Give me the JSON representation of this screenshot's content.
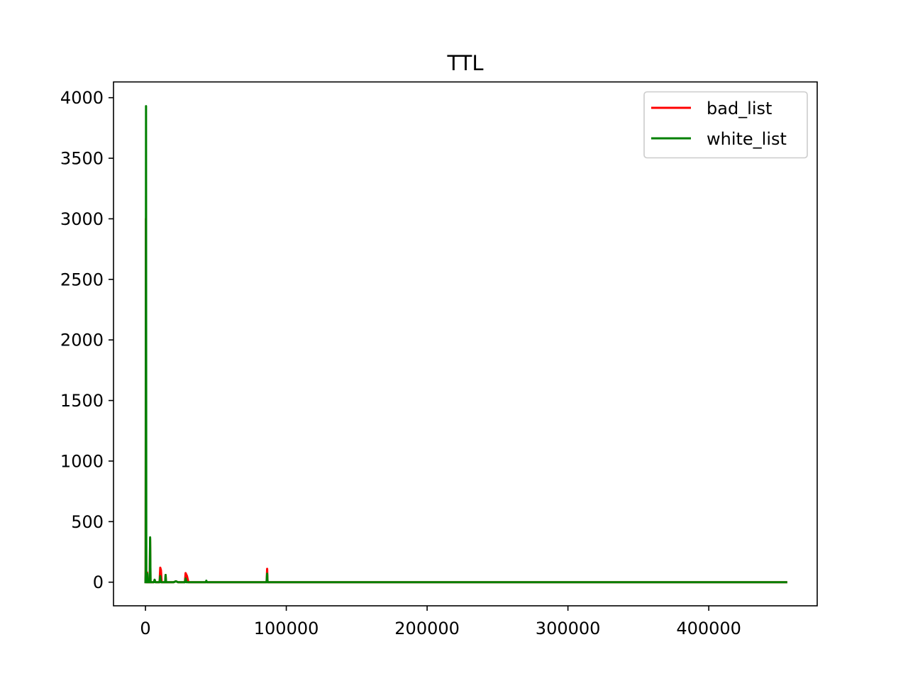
{
  "chart_data": {
    "type": "line",
    "title": "TTL",
    "xlabel": "",
    "ylabel": "",
    "xlim": [
      -22700,
      477000
    ],
    "ylim": [
      -195,
      4130
    ],
    "x_ticks": [
      0,
      100000,
      200000,
      300000,
      400000
    ],
    "x_tick_labels": [
      "0",
      "100000",
      "200000",
      "300000",
      "400000"
    ],
    "y_ticks": [
      0,
      500,
      1000,
      1500,
      2000,
      2500,
      3000,
      3500,
      4000
    ],
    "y_tick_labels": [
      "0",
      "500",
      "1000",
      "1500",
      "2000",
      "2500",
      "3000",
      "3500",
      "4000"
    ],
    "grid": false,
    "legend_position": "top-right",
    "series": [
      {
        "name": "bad_list",
        "color": "#ff0000",
        "points": [
          [
            0,
            0
          ],
          [
            100,
            60
          ],
          [
            300,
            3000
          ],
          [
            500,
            0
          ],
          [
            1000,
            0
          ],
          [
            1200,
            80
          ],
          [
            1500,
            0
          ],
          [
            3000,
            0
          ],
          [
            3300,
            360
          ],
          [
            3600,
            0
          ],
          [
            6000,
            0
          ],
          [
            6500,
            20
          ],
          [
            7000,
            0
          ],
          [
            10000,
            0
          ],
          [
            10500,
            120
          ],
          [
            11000,
            100
          ],
          [
            11500,
            0
          ],
          [
            14000,
            0
          ],
          [
            14300,
            60
          ],
          [
            14600,
            0
          ],
          [
            20000,
            0
          ],
          [
            21600,
            8
          ],
          [
            23000,
            0
          ],
          [
            28000,
            0
          ],
          [
            28500,
            75
          ],
          [
            29500,
            50
          ],
          [
            30500,
            0
          ],
          [
            43000,
            0
          ],
          [
            43200,
            10
          ],
          [
            43600,
            0
          ],
          [
            86000,
            0
          ],
          [
            86400,
            110
          ],
          [
            86700,
            0
          ],
          [
            455000,
            0
          ]
        ]
      },
      {
        "name": "white_list",
        "color": "#008000",
        "points": [
          [
            0,
            0
          ],
          [
            150,
            90
          ],
          [
            400,
            3930
          ],
          [
            600,
            0
          ],
          [
            1100,
            0
          ],
          [
            1300,
            70
          ],
          [
            1600,
            0
          ],
          [
            3000,
            0
          ],
          [
            3300,
            370
          ],
          [
            3600,
            0
          ],
          [
            6000,
            0
          ],
          [
            6500,
            20
          ],
          [
            7000,
            0
          ],
          [
            10000,
            0
          ],
          [
            10500,
            50
          ],
          [
            11000,
            0
          ],
          [
            14000,
            0
          ],
          [
            14300,
            60
          ],
          [
            14600,
            0
          ],
          [
            20000,
            0
          ],
          [
            21600,
            8
          ],
          [
            23000,
            0
          ],
          [
            28000,
            0
          ],
          [
            28500,
            30
          ],
          [
            29000,
            0
          ],
          [
            43000,
            0
          ],
          [
            43200,
            12
          ],
          [
            43600,
            0
          ],
          [
            86000,
            0
          ],
          [
            86400,
            70
          ],
          [
            86700,
            0
          ],
          [
            455000,
            0
          ]
        ]
      }
    ]
  }
}
